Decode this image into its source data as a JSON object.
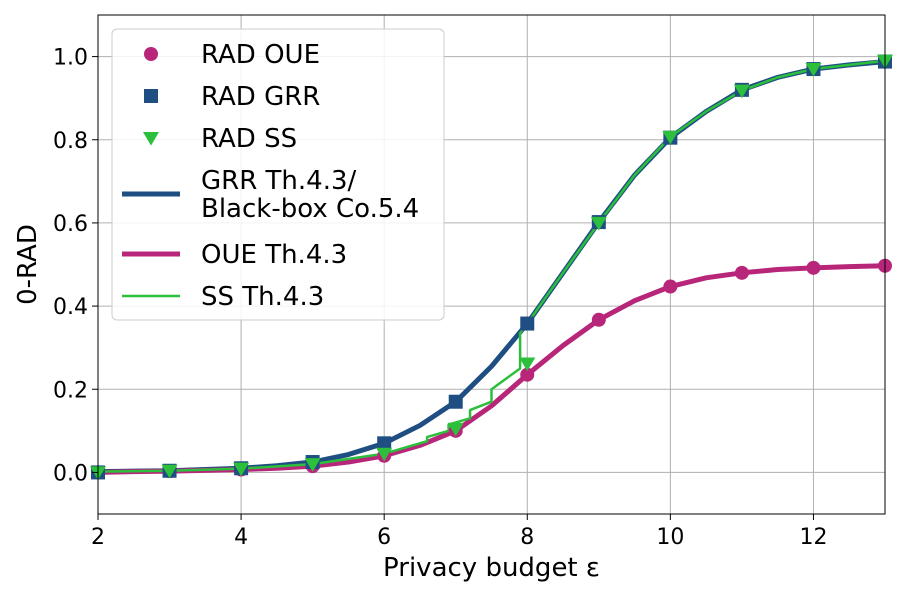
{
  "chart_data": {
    "type": "line",
    "xlabel": "Privacy budget ε",
    "ylabel": "0-RAD",
    "xlim": [
      2,
      13
    ],
    "ylim": [
      -0.1,
      1.1
    ],
    "xticks": [
      2,
      4,
      6,
      8,
      10,
      12
    ],
    "yticks": [
      0.0,
      0.2,
      0.4,
      0.6,
      0.8,
      1.0
    ],
    "xtick_labels": [
      "2",
      "4",
      "6",
      "8",
      "10",
      "12"
    ],
    "ytick_labels": [
      "0.0",
      "0.2",
      "0.4",
      "0.6",
      "0.8",
      "1.0"
    ],
    "grid": true,
    "legend_placement": "top-left",
    "x": [
      2,
      3,
      4,
      5,
      6,
      7,
      8,
      9,
      10,
      11,
      12,
      13
    ],
    "series": [
      {
        "name": "RAD OUE",
        "style": "markers",
        "marker": "circle",
        "color": "#b8267a",
        "values": [
          0.0,
          0.003,
          0.007,
          0.015,
          0.04,
          0.1,
          0.235,
          0.367,
          0.447,
          0.48,
          0.492,
          0.497
        ]
      },
      {
        "name": "RAD GRR",
        "style": "markers",
        "marker": "square",
        "color": "#1f4e82",
        "values": [
          0.0,
          0.004,
          0.01,
          0.025,
          0.07,
          0.17,
          0.358,
          0.602,
          0.805,
          0.92,
          0.97,
          0.988
        ]
      },
      {
        "name": "RAD SS",
        "style": "markers",
        "marker": "triangle-down",
        "color": "#2bbf3c",
        "values": [
          0.0,
          0.004,
          0.009,
          0.02,
          0.045,
          0.105,
          0.262,
          0.6,
          0.807,
          0.918,
          0.97,
          0.99
        ]
      },
      {
        "name": "GRR Th.4.3/ Black-box Co.5.4",
        "legend_lines": [
          "GRR Th.4.3/",
          "Black-box Co.5.4"
        ],
        "style": "line",
        "color": "#1f4e82",
        "line_width": 5,
        "x": [
          2,
          2.5,
          3,
          3.5,
          4,
          4.5,
          5,
          5.5,
          6,
          6.5,
          7,
          7.5,
          8,
          8.5,
          9,
          9.5,
          10,
          10.5,
          11,
          11.5,
          12,
          12.5,
          13
        ],
        "values": [
          0.002,
          0.003,
          0.004,
          0.007,
          0.01,
          0.016,
          0.025,
          0.043,
          0.07,
          0.113,
          0.17,
          0.255,
          0.358,
          0.48,
          0.602,
          0.715,
          0.805,
          0.868,
          0.92,
          0.95,
          0.97,
          0.98,
          0.988
        ]
      },
      {
        "name": "OUE Th.4.3",
        "style": "line",
        "color": "#b8267a",
        "line_width": 5,
        "x": [
          2,
          2.5,
          3,
          3.5,
          4,
          4.5,
          5,
          5.5,
          6,
          6.5,
          7,
          7.5,
          8,
          8.5,
          9,
          9.5,
          10,
          10.5,
          11,
          11.5,
          12,
          12.5,
          13
        ],
        "values": [
          0.0,
          0.002,
          0.003,
          0.005,
          0.007,
          0.01,
          0.015,
          0.025,
          0.04,
          0.065,
          0.1,
          0.16,
          0.235,
          0.305,
          0.367,
          0.413,
          0.447,
          0.468,
          0.48,
          0.488,
          0.492,
          0.495,
          0.497
        ]
      },
      {
        "name": "SS Th.4.3",
        "style": "line",
        "color": "#2bbf3c",
        "line_width": 2.5,
        "x": [
          2,
          3,
          4,
          5,
          6,
          6.6,
          6.6,
          6.9,
          6.9,
          7.2,
          7.2,
          7.5,
          7.5,
          7.9,
          7.9,
          8.0,
          8.5,
          9,
          9.5,
          10,
          10.5,
          11,
          11.5,
          12,
          12.5,
          13
        ],
        "values": [
          0.002,
          0.004,
          0.009,
          0.02,
          0.045,
          0.075,
          0.085,
          0.1,
          0.115,
          0.13,
          0.15,
          0.17,
          0.2,
          0.25,
          0.335,
          0.358,
          0.48,
          0.6,
          0.715,
          0.807,
          0.868,
          0.918,
          0.95,
          0.97,
          0.98,
          0.99
        ]
      }
    ]
  }
}
